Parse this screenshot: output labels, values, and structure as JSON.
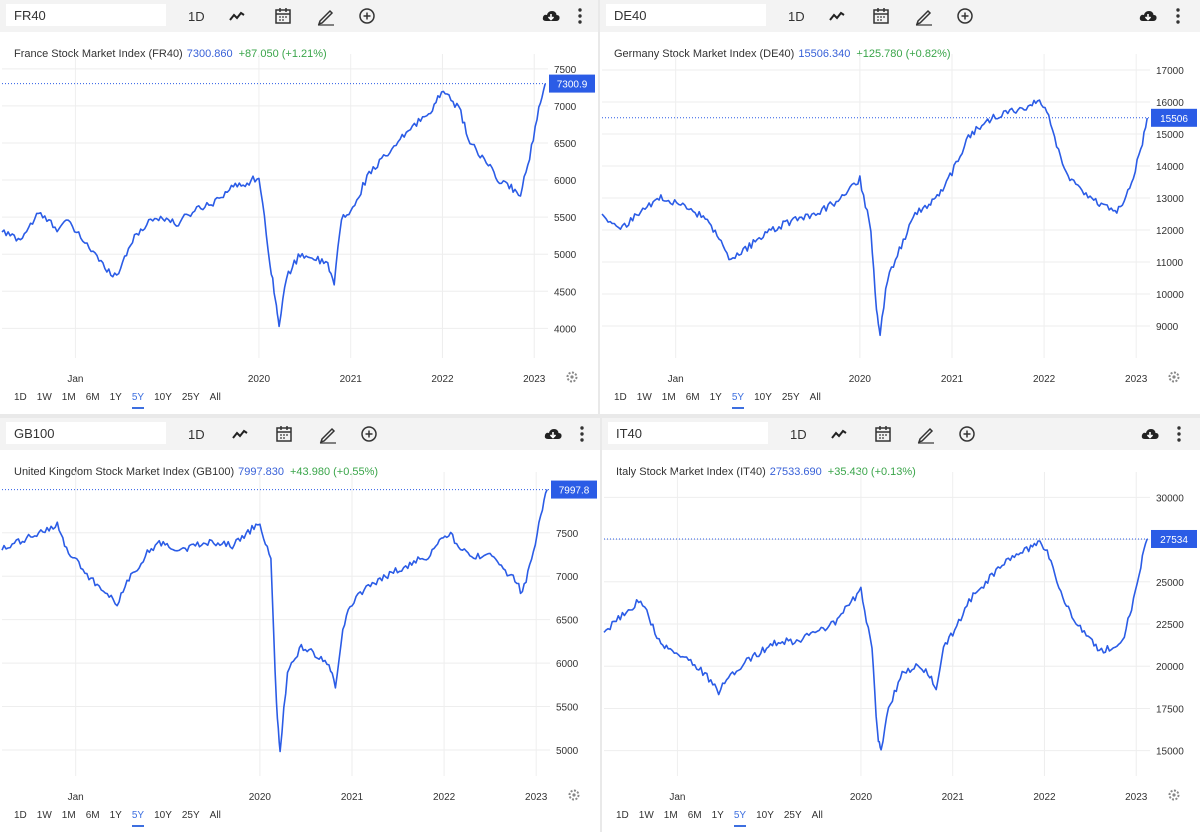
{
  "panels": [
    {
      "symbol": "FR40",
      "interval": "1D",
      "title": "France Stock Market Index (FR40)",
      "price": "7300.860",
      "change": "+87.050 (+1.21%)",
      "price_tag": "7300.9",
      "ranges": [
        "1D",
        "1W",
        "1M",
        "6M",
        "1Y",
        "5Y",
        "10Y",
        "25Y",
        "All"
      ],
      "active_range": "5Y"
    },
    {
      "symbol": "DE40",
      "interval": "1D",
      "title": "Germany Stock Market Index (DE40)",
      "price": "15506.340",
      "change": "+125.780 (+0.82%)",
      "price_tag": "15506",
      "ranges": [
        "1D",
        "1W",
        "1M",
        "6M",
        "1Y",
        "5Y",
        "10Y",
        "25Y",
        "All"
      ],
      "active_range": "5Y"
    },
    {
      "symbol": "GB100",
      "interval": "1D",
      "title": "United Kingdom Stock Market Index (GB100)",
      "price": "7997.830",
      "change": "+43.980 (+0.55%)",
      "price_tag": "7997.8",
      "ranges": [
        "1D",
        "1W",
        "1M",
        "6M",
        "1Y",
        "5Y",
        "10Y",
        "25Y",
        "All"
      ],
      "active_range": "5Y"
    },
    {
      "symbol": "IT40",
      "interval": "1D",
      "title": "Italy Stock Market Index (IT40)",
      "price": "27533.690",
      "change": "+35.430 (+0.13%)",
      "price_tag": "27534",
      "ranges": [
        "1D",
        "1W",
        "1M",
        "6M",
        "1Y",
        "5Y",
        "10Y",
        "25Y",
        "All"
      ],
      "active_range": "5Y"
    }
  ],
  "colors": {
    "line": "#2b5ce6",
    "positive": "#3aa54a",
    "price": "#3861d8",
    "accent": "#2b5ce6"
  },
  "chart_data": [
    {
      "type": "line",
      "title": "France Stock Market Index (FR40)",
      "x_labels": [
        "Jan",
        "2020",
        "2021",
        "2022",
        "2023"
      ],
      "x_label_pos": [
        2018.0,
        2020.0,
        2021.0,
        2022.0,
        2023.0
      ],
      "xlim": [
        2017.2,
        2023.15
      ],
      "y_ticks": [
        4000,
        4500,
        5000,
        5500,
        6000,
        6500,
        7000,
        7500
      ],
      "ylim": [
        3600,
        7700
      ],
      "last_value": 7300.9,
      "series": [
        {
          "name": "FR40",
          "x": [
            2017.2,
            2017.4,
            2017.6,
            2017.8,
            2017.9,
            2018.15,
            2018.3,
            2018.45,
            2018.6,
            2018.8,
            2018.95,
            2019.1,
            2019.3,
            2019.5,
            2019.7,
            2019.85,
            2020.0,
            2020.12,
            2020.18,
            2020.22,
            2020.3,
            2020.45,
            2020.6,
            2020.75,
            2020.82,
            2020.9,
            2021.0,
            2021.2,
            2021.45,
            2021.65,
            2021.85,
            2021.95,
            2022.05,
            2022.2,
            2022.3,
            2022.5,
            2022.6,
            2022.75,
            2022.85,
            2022.95,
            2023.05,
            2023.12
          ],
          "values": [
            5300,
            5200,
            5550,
            5350,
            5450,
            5100,
            4850,
            4700,
            5150,
            5450,
            5500,
            5400,
            5600,
            5700,
            5900,
            5950,
            6050,
            4900,
            4400,
            4000,
            4700,
            5000,
            4950,
            4850,
            4600,
            5500,
            5550,
            6100,
            6400,
            6700,
            6900,
            7100,
            7200,
            6900,
            6500,
            6200,
            6000,
            5900,
            5800,
            6300,
            7000,
            7300
          ]
        }
      ]
    },
    {
      "type": "line",
      "title": "Germany Stock Market Index (DE40)",
      "x_labels": [
        "Jan",
        "2020",
        "2021",
        "2022",
        "2023"
      ],
      "x_label_pos": [
        2018.0,
        2020.0,
        2021.0,
        2022.0,
        2023.0
      ],
      "xlim": [
        2017.2,
        2023.15
      ],
      "y_ticks": [
        9000,
        10000,
        11000,
        12000,
        13000,
        14000,
        15000,
        16000,
        17000
      ],
      "ylim": [
        8000,
        17500
      ],
      "last_value": 15506,
      "series": [
        {
          "name": "DE40",
          "x": [
            2017.2,
            2017.4,
            2017.6,
            2017.8,
            2017.9,
            2018.1,
            2018.3,
            2018.45,
            2018.6,
            2018.8,
            2018.95,
            2019.1,
            2019.3,
            2019.5,
            2019.7,
            2019.85,
            2020.0,
            2020.12,
            2020.18,
            2020.22,
            2020.3,
            2020.45,
            2020.6,
            2020.75,
            2020.82,
            2020.9,
            2021.0,
            2021.2,
            2021.45,
            2021.65,
            2021.85,
            2021.95,
            2022.05,
            2022.2,
            2022.3,
            2022.5,
            2022.6,
            2022.75,
            2022.85,
            2022.95,
            2023.05,
            2023.12
          ],
          "values": [
            12500,
            12000,
            12500,
            13000,
            13000,
            12700,
            12400,
            11800,
            11000,
            11500,
            11800,
            12100,
            12300,
            12500,
            12800,
            13200,
            13600,
            12000,
            9500,
            8800,
            10500,
            11500,
            12500,
            12800,
            13000,
            13300,
            13800,
            15000,
            15500,
            15700,
            15900,
            16100,
            15600,
            14000,
            13500,
            13000,
            12800,
            12600,
            12700,
            13500,
            14500,
            15500
          ]
        }
      ]
    },
    {
      "type": "line",
      "title": "United Kingdom Stock Market Index (GB100)",
      "x_labels": [
        "Jan",
        "2020",
        "2021",
        "2022",
        "2023"
      ],
      "x_label_pos": [
        2018.0,
        2020.0,
        2021.0,
        2022.0,
        2023.0
      ],
      "xlim": [
        2017.2,
        2023.15
      ],
      "y_ticks": [
        5000,
        5500,
        6000,
        6500,
        7000,
        7500
      ],
      "ylim": [
        4700,
        8200
      ],
      "last_value": 7997.8,
      "series": [
        {
          "name": "GB100",
          "x": [
            2017.2,
            2017.4,
            2017.6,
            2017.8,
            2017.9,
            2018.1,
            2018.3,
            2018.45,
            2018.6,
            2018.8,
            2018.95,
            2019.1,
            2019.3,
            2019.5,
            2019.7,
            2019.85,
            2020.0,
            2020.12,
            2020.18,
            2020.22,
            2020.3,
            2020.45,
            2020.6,
            2020.75,
            2020.82,
            2020.9,
            2021.0,
            2021.2,
            2021.45,
            2021.65,
            2021.85,
            2021.95,
            2022.05,
            2022.2,
            2022.3,
            2022.5,
            2022.6,
            2022.75,
            2022.85,
            2022.95,
            2023.05,
            2023.12
          ],
          "values": [
            7300,
            7400,
            7500,
            7600,
            7300,
            7050,
            6800,
            6700,
            7000,
            7300,
            7400,
            7300,
            7350,
            7400,
            7350,
            7500,
            7600,
            7200,
            5500,
            5000,
            5900,
            6200,
            6100,
            6000,
            5700,
            6400,
            6700,
            6900,
            7050,
            7150,
            7250,
            7400,
            7500,
            7300,
            7200,
            7300,
            7100,
            7000,
            6800,
            7200,
            7700,
            7998
          ]
        }
      ]
    },
    {
      "type": "line",
      "title": "Italy Stock Market Index (IT40)",
      "x_labels": [
        "Jan",
        "2020",
        "2021",
        "2022",
        "2023"
      ],
      "x_label_pos": [
        2018.0,
        2020.0,
        2021.0,
        2022.0,
        2023.0
      ],
      "xlim": [
        2017.2,
        2023.15
      ],
      "y_ticks": [
        15000,
        17500,
        20000,
        22500,
        25000,
        27500,
        30000
      ],
      "ylim": [
        13500,
        31500
      ],
      "last_value": 27534,
      "series": [
        {
          "name": "IT40",
          "x": [
            2017.2,
            2017.4,
            2017.6,
            2017.8,
            2017.9,
            2018.1,
            2018.3,
            2018.45,
            2018.6,
            2018.8,
            2018.95,
            2019.1,
            2019.3,
            2019.5,
            2019.7,
            2019.85,
            2020.0,
            2020.12,
            2020.18,
            2020.22,
            2020.3,
            2020.45,
            2020.6,
            2020.75,
            2020.82,
            2020.9,
            2021.0,
            2021.2,
            2021.45,
            2021.65,
            2021.85,
            2021.95,
            2022.05,
            2022.2,
            2022.3,
            2022.5,
            2022.6,
            2022.75,
            2022.85,
            2022.95,
            2023.05,
            2023.12
          ],
          "values": [
            22000,
            23000,
            24000,
            21500,
            21000,
            20500,
            19500,
            18500,
            19500,
            20500,
            21000,
            21500,
            21500,
            22000,
            22500,
            23500,
            24500,
            21000,
            16000,
            15000,
            17500,
            19500,
            20000,
            19500,
            18500,
            21000,
            22000,
            24000,
            25500,
            26500,
            27000,
            27500,
            26500,
            24000,
            23000,
            21500,
            21000,
            21000,
            21500,
            23500,
            26000,
            27534
          ]
        }
      ]
    }
  ]
}
